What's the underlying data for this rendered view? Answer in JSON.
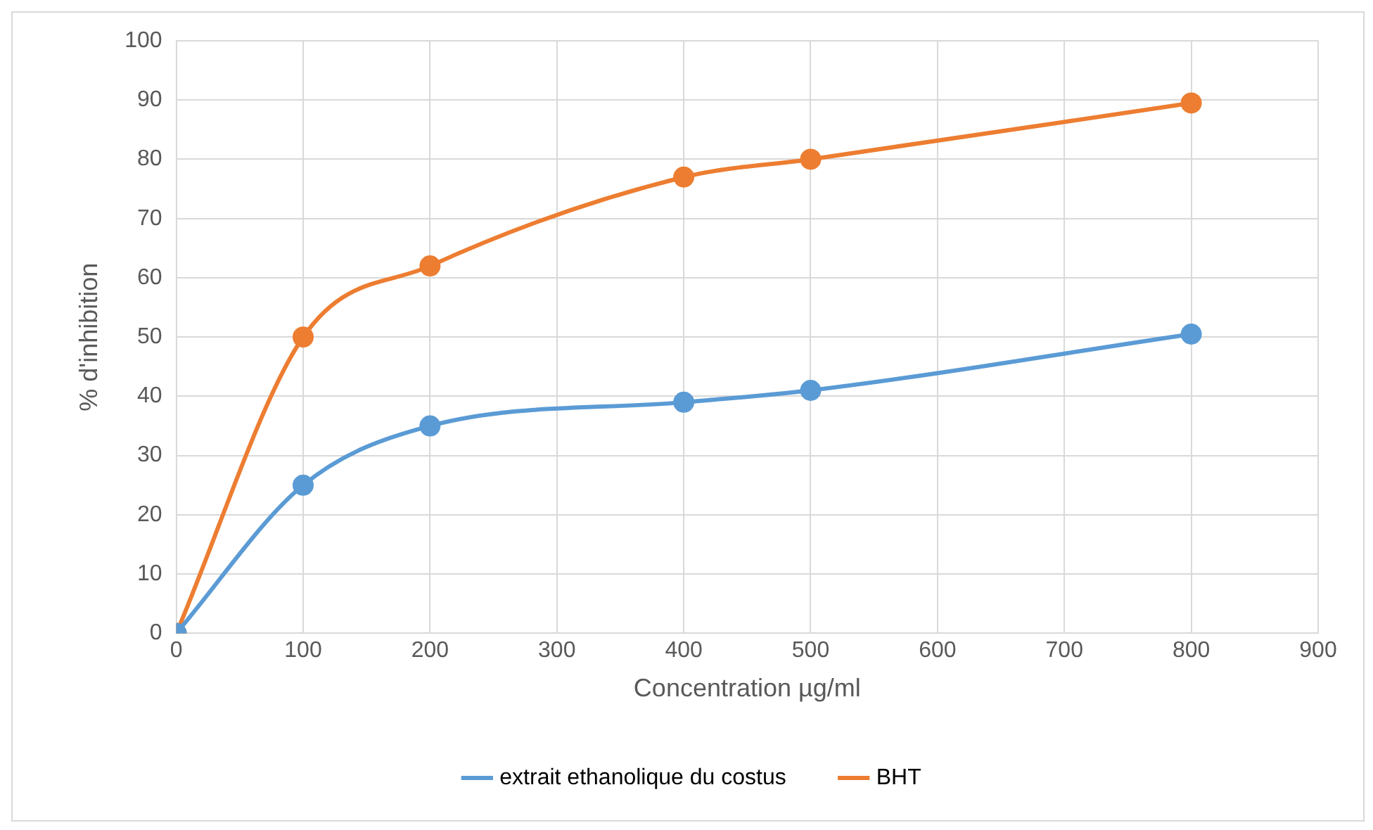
{
  "chart_data": {
    "type": "line",
    "xlabel": "Concentration µg/ml",
    "ylabel": "% d'inhibition",
    "x": [
      0,
      100,
      200,
      400,
      500,
      800
    ],
    "series": [
      {
        "name": "extrait ethanolique du costus",
        "color": "#5b9bd5",
        "values": [
          0,
          25,
          35,
          39,
          41,
          50.5
        ]
      },
      {
        "name": "BHT",
        "color": "#ed7d31",
        "values": [
          0,
          50,
          62,
          77,
          80,
          89.5
        ]
      }
    ],
    "xlim": [
      0,
      900
    ],
    "xticks": [
      0,
      100,
      200,
      300,
      400,
      500,
      600,
      700,
      800,
      900
    ],
    "ylim": [
      0,
      100
    ],
    "yticks": [
      0,
      10,
      20,
      30,
      40,
      50,
      60,
      70,
      80,
      90,
      100
    ],
    "grid": true,
    "legend": "bottom",
    "marker": "circle",
    "line_style": "solid"
  }
}
